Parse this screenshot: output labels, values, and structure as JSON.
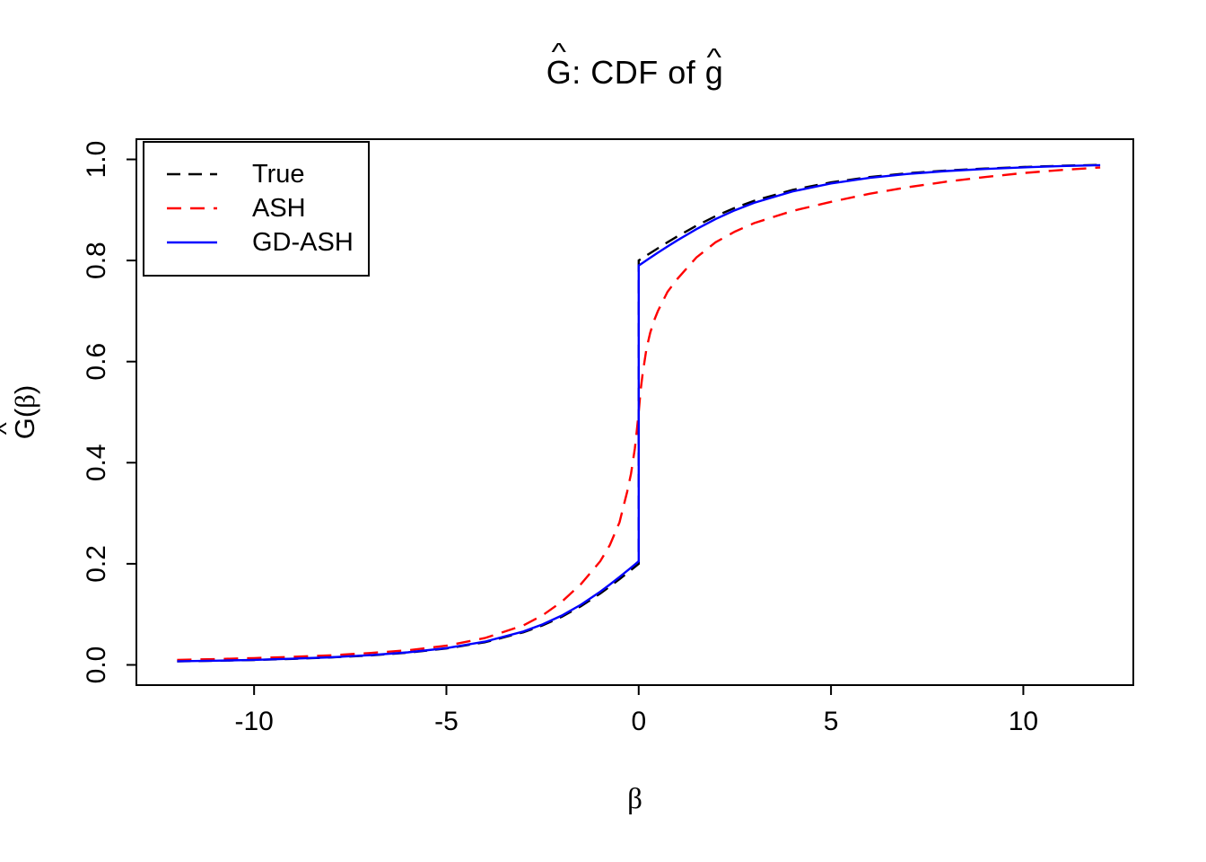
{
  "title": {
    "hat": "^",
    "g_upper": "G",
    "mid": ": CDF of ",
    "g_lower": "g"
  },
  "axes": {
    "y_label": {
      "hat": "^",
      "g": "G",
      "open_paren": "(",
      "beta": "β",
      "close_paren": ")"
    },
    "x_label": {
      "beta": "β"
    }
  },
  "chart_data": {
    "type": "line",
    "title": "Ĝ: CDF of ĝ",
    "xlabel": "β",
    "ylabel": "Ĝ(β)",
    "xlim": [
      -13.06,
      12.86
    ],
    "ylim": [
      -0.04,
      1.04
    ],
    "grid": false,
    "legend_position": "topleft",
    "x_ticks": [
      -10,
      -5,
      0,
      5,
      10
    ],
    "x_tick_labels": [
      "-10",
      "-5",
      "0",
      "5",
      "10"
    ],
    "y_ticks": [
      0.0,
      0.2,
      0.4,
      0.6,
      0.8,
      1.0
    ],
    "y_tick_labels": [
      "0.0",
      "0.2",
      "0.4",
      "0.6",
      "0.8",
      "1.0"
    ],
    "series": [
      {
        "name": "True",
        "color": "#000000",
        "style": "dashed",
        "dash": "15 9",
        "line_width": 2.4,
        "x": [
          -12,
          -11,
          -10,
          -9,
          -8,
          -7,
          -6,
          -5,
          -4,
          -3,
          -2.5,
          -2,
          -1.5,
          -1,
          -0.75,
          -0.5,
          -0.25,
          -0.1,
          0,
          0,
          0.1,
          0.25,
          0.5,
          0.75,
          1,
          1.5,
          2,
          2.5,
          3,
          4,
          5,
          6,
          7,
          8,
          9,
          10,
          11,
          12
        ],
        "y": [
          0.007,
          0.0082,
          0.0098,
          0.0119,
          0.0147,
          0.0186,
          0.0242,
          0.0324,
          0.0448,
          0.0644,
          0.0781,
          0.0952,
          0.1162,
          0.1412,
          0.1551,
          0.1696,
          0.1847,
          0.1938,
          0.2,
          0.8,
          0.8049,
          0.8122,
          0.8242,
          0.836,
          0.8474,
          0.8687,
          0.8877,
          0.9041,
          0.9181,
          0.9396,
          0.9546,
          0.9651,
          0.9726,
          0.978,
          0.982,
          0.985,
          0.9874,
          0.9892
        ]
      },
      {
        "name": "ASH",
        "color": "#FF0000",
        "style": "dashed",
        "dash": "16 10",
        "line_width": 2.4,
        "x": [
          -12,
          -11,
          -10,
          -9,
          -8,
          -7,
          -6,
          -5,
          -4,
          -3,
          -2.5,
          -2,
          -1.5,
          -1,
          -0.75,
          -0.5,
          -0.4,
          -0.3,
          -0.2,
          -0.1,
          -0.05,
          0,
          0.05,
          0.1,
          0.2,
          0.3,
          0.4,
          0.5,
          0.75,
          1,
          1.5,
          2,
          2.5,
          3,
          4,
          5,
          6,
          7,
          8,
          9,
          10,
          11,
          12
        ],
        "y": [
          0.01,
          0.0115,
          0.0135,
          0.016,
          0.019,
          0.0235,
          0.029,
          0.038,
          0.053,
          0.078,
          0.098,
          0.125,
          0.16,
          0.205,
          0.237,
          0.282,
          0.312,
          0.342,
          0.378,
          0.428,
          0.462,
          0.5,
          0.543,
          0.575,
          0.625,
          0.657,
          0.681,
          0.7,
          0.738,
          0.763,
          0.806,
          0.836,
          0.857,
          0.874,
          0.898,
          0.916,
          0.932,
          0.945,
          0.956,
          0.965,
          0.973,
          0.979,
          0.984
        ]
      },
      {
        "name": "GD-ASH",
        "color": "#0000FF",
        "style": "solid",
        "dash": null,
        "line_width": 2.4,
        "x": [
          -12,
          -11,
          -10,
          -9,
          -8,
          -7,
          -6,
          -5,
          -4,
          -3,
          -2.5,
          -2,
          -1.5,
          -1,
          -0.75,
          -0.5,
          -0.25,
          -0.1,
          0,
          0,
          0.1,
          0.25,
          0.5,
          0.75,
          1,
          1.5,
          2,
          2.5,
          3,
          4,
          5,
          6,
          7,
          8,
          9,
          10,
          11,
          12
        ],
        "y": [
          0.0072,
          0.0084,
          0.01,
          0.0122,
          0.0151,
          0.0191,
          0.0248,
          0.0332,
          0.0459,
          0.066,
          0.0801,
          0.0976,
          0.1191,
          0.1447,
          0.159,
          0.1738,
          0.1893,
          0.1986,
          0.205,
          0.79,
          0.7951,
          0.8028,
          0.8154,
          0.8278,
          0.8397,
          0.8621,
          0.8821,
          0.8993,
          0.914,
          0.9366,
          0.9524,
          0.9634,
          0.9712,
          0.9769,
          0.9811,
          0.9843,
          0.9868,
          0.9887
        ]
      }
    ]
  }
}
